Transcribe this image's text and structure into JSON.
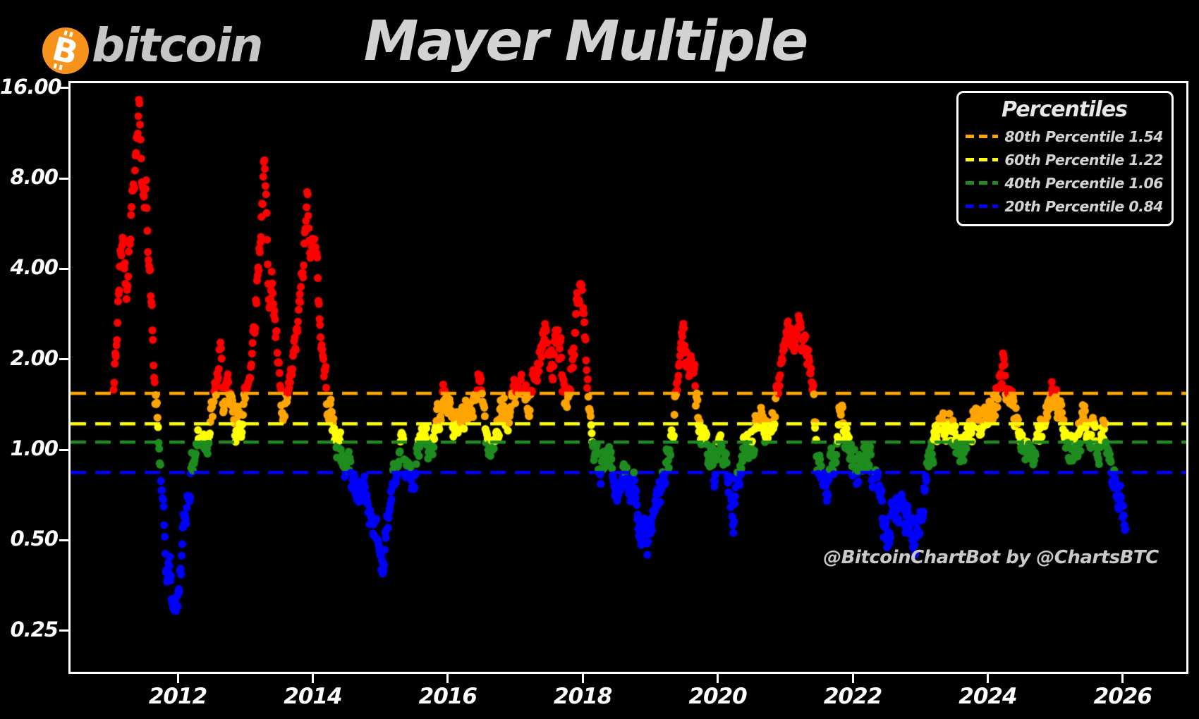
{
  "brand": {
    "wordmark": "bitcoin",
    "coin_color": "#f7931a",
    "symbol": "B"
  },
  "header": {
    "title": "Mayer Multiple"
  },
  "watermark": "@BitcoinChartBot by @ChartsBTC",
  "legend": {
    "title": "Percentiles",
    "items": [
      {
        "label": "80th Percentile 1.54",
        "color": "#ffa500"
      },
      {
        "label": "60th Percentile 1.22",
        "color": "#ffff00"
      },
      {
        "label": "40th Percentile 1.06",
        "color": "#1e8c1e"
      },
      {
        "label": "20th Percentile 0.84",
        "color": "#0000ff"
      }
    ]
  },
  "axes": {
    "y_tick_labels": [
      "16.00",
      "8.00",
      "4.00",
      "2.00",
      "1.00",
      "0.50",
      "0.25"
    ],
    "y_tick_values": [
      16,
      8,
      4,
      2,
      1,
      0.5,
      0.25
    ],
    "x_tick_labels": [
      "2012",
      "2014",
      "2016",
      "2018",
      "2020",
      "2022",
      "2024",
      "2026"
    ],
    "x_tick_values": [
      2012,
      2014,
      2016,
      2018,
      2020,
      2022,
      2024,
      2026
    ]
  },
  "chart_data": {
    "type": "scatter",
    "title": "Mayer Multiple",
    "x_axis": {
      "ticks": [
        2012,
        2014,
        2016,
        2018,
        2020,
        2022,
        2024,
        2026
      ],
      "range": [
        2010.45,
        2026.9
      ]
    },
    "y_axis": {
      "scale": "log2",
      "ticks": [
        16,
        8,
        4,
        2,
        1,
        0.5,
        0.25
      ],
      "range": [
        0.19,
        16.6
      ]
    },
    "grid": false,
    "legend_position": "upper right",
    "thresholds": [
      {
        "name": "80th Percentile",
        "value": 1.54,
        "color": "#ffa500"
      },
      {
        "name": "60th Percentile",
        "value": 1.22,
        "color": "#ffff00"
      },
      {
        "name": "40th Percentile",
        "value": 1.06,
        "color": "#1e8c1e"
      },
      {
        "name": "20th Percentile",
        "value": 0.84,
        "color": "#0000ff"
      }
    ],
    "point_colors": {
      "above_80th": "#ff0000",
      "p60_80": "#ffa500",
      "p40_60": "#ffff00",
      "p20_40": "#1e8c1e",
      "below_20th": "#0000ff"
    },
    "series_keypoints": [
      [
        2011.05,
        1.55
      ],
      [
        2011.09,
        2.2
      ],
      [
        2011.12,
        3.0
      ],
      [
        2011.15,
        4.2
      ],
      [
        2011.18,
        5.1
      ],
      [
        2011.21,
        4.2
      ],
      [
        2011.24,
        3.5
      ],
      [
        2011.27,
        4.6
      ],
      [
        2011.31,
        6.2
      ],
      [
        2011.35,
        8.2
      ],
      [
        2011.39,
        11.0
      ],
      [
        2011.43,
        14.0
      ],
      [
        2011.45,
        11.5
      ],
      [
        2011.47,
        8.5
      ],
      [
        2011.5,
        6.2
      ],
      [
        2011.53,
        7.3
      ],
      [
        2011.56,
        5.2
      ],
      [
        2011.6,
        3.4
      ],
      [
        2011.63,
        2.3
      ],
      [
        2011.66,
        1.55
      ],
      [
        2011.7,
        1.2
      ],
      [
        2011.73,
        0.95
      ],
      [
        2011.76,
        0.74
      ],
      [
        2011.79,
        0.55
      ],
      [
        2011.82,
        0.44
      ],
      [
        2011.85,
        0.36
      ],
      [
        2011.88,
        0.43
      ],
      [
        2011.92,
        0.29
      ],
      [
        2011.96,
        0.33
      ],
      [
        2012.0,
        0.3
      ],
      [
        2012.04,
        0.4
      ],
      [
        2012.08,
        0.52
      ],
      [
        2012.12,
        0.63
      ],
      [
        2012.16,
        0.74
      ],
      [
        2012.2,
        0.85
      ],
      [
        2012.25,
        0.98
      ],
      [
        2012.3,
        1.1
      ],
      [
        2012.34,
        1.05
      ],
      [
        2012.38,
        1.15
      ],
      [
        2012.42,
        1.1
      ],
      [
        2012.46,
        1.18
      ],
      [
        2012.5,
        1.28
      ],
      [
        2012.55,
        1.45
      ],
      [
        2012.6,
        1.8
      ],
      [
        2012.63,
        2.1
      ],
      [
        2012.66,
        1.6
      ],
      [
        2012.7,
        1.38
      ],
      [
        2012.74,
        1.52
      ],
      [
        2012.78,
        1.4
      ],
      [
        2012.82,
        1.3
      ],
      [
        2012.86,
        1.25
      ],
      [
        2012.9,
        1.2
      ],
      [
        2012.95,
        1.32
      ],
      [
        2013.0,
        1.48
      ],
      [
        2013.05,
        1.72
      ],
      [
        2013.1,
        2.2
      ],
      [
        2013.15,
        3.0
      ],
      [
        2013.2,
        4.3
      ],
      [
        2013.24,
        6.0
      ],
      [
        2013.28,
        8.8
      ],
      [
        2013.31,
        6.2
      ],
      [
        2013.34,
        4.2
      ],
      [
        2013.37,
        3.1
      ],
      [
        2013.4,
        3.7
      ],
      [
        2013.44,
        2.7
      ],
      [
        2013.48,
        1.95
      ],
      [
        2013.52,
        1.45
      ],
      [
        2013.56,
        1.18
      ],
      [
        2013.6,
        1.28
      ],
      [
        2013.65,
        1.52
      ],
      [
        2013.7,
        1.85
      ],
      [
        2013.75,
        2.25
      ],
      [
        2013.8,
        2.85
      ],
      [
        2013.85,
        3.7
      ],
      [
        2013.89,
        5.2
      ],
      [
        2013.92,
        7.0
      ],
      [
        2013.95,
        5.8
      ],
      [
        2013.98,
        4.4
      ],
      [
        2014.02,
        5.4
      ],
      [
        2014.05,
        4.3
      ],
      [
        2014.09,
        3.1
      ],
      [
        2014.13,
        2.3
      ],
      [
        2014.17,
        1.85
      ],
      [
        2014.21,
        1.55
      ],
      [
        2014.25,
        1.42
      ],
      [
        2014.29,
        1.25
      ],
      [
        2014.33,
        1.12
      ],
      [
        2014.37,
        1.05
      ],
      [
        2014.41,
        1.0
      ],
      [
        2014.45,
        0.93
      ],
      [
        2014.49,
        0.88
      ],
      [
        2014.53,
        0.92
      ],
      [
        2014.57,
        0.84
      ],
      [
        2014.61,
        0.78
      ],
      [
        2014.65,
        0.72
      ],
      [
        2014.69,
        0.76
      ],
      [
        2014.73,
        0.69
      ],
      [
        2014.77,
        0.73
      ],
      [
        2014.81,
        0.66
      ],
      [
        2014.86,
        0.62
      ],
      [
        2014.91,
        0.58
      ],
      [
        2014.96,
        0.5
      ],
      [
        2015.01,
        0.44
      ],
      [
        2015.05,
        0.43
      ],
      [
        2015.09,
        0.52
      ],
      [
        2015.13,
        0.62
      ],
      [
        2015.17,
        0.73
      ],
      [
        2015.21,
        0.8
      ],
      [
        2015.26,
        0.86
      ],
      [
        2015.31,
        0.92
      ],
      [
        2015.36,
        0.87
      ],
      [
        2015.41,
        0.82
      ],
      [
        2015.46,
        0.78
      ],
      [
        2015.51,
        0.86
      ],
      [
        2015.56,
        0.96
      ],
      [
        2015.61,
        1.06
      ],
      [
        2015.66,
        1.12
      ],
      [
        2015.7,
        1.02
      ],
      [
        2015.75,
        0.96
      ],
      [
        2015.8,
        1.06
      ],
      [
        2015.85,
        1.25
      ],
      [
        2015.9,
        1.48
      ],
      [
        2015.93,
        1.66
      ],
      [
        2015.97,
        1.5
      ],
      [
        2016.01,
        1.4
      ],
      [
        2016.06,
        1.28
      ],
      [
        2016.11,
        1.18
      ],
      [
        2016.16,
        1.12
      ],
      [
        2016.21,
        1.2
      ],
      [
        2016.26,
        1.3
      ],
      [
        2016.31,
        1.24
      ],
      [
        2016.36,
        1.36
      ],
      [
        2016.41,
        1.5
      ],
      [
        2016.45,
        1.68
      ],
      [
        2016.49,
        1.52
      ],
      [
        2016.53,
        1.34
      ],
      [
        2016.57,
        1.2
      ],
      [
        2016.62,
        1.12
      ],
      [
        2016.67,
        1.08
      ],
      [
        2016.72,
        1.16
      ],
      [
        2016.77,
        1.24
      ],
      [
        2016.82,
        1.3
      ],
      [
        2016.87,
        1.27
      ],
      [
        2016.92,
        1.36
      ],
      [
        2016.97,
        1.44
      ],
      [
        2017.02,
        1.55
      ],
      [
        2017.06,
        1.65
      ],
      [
        2017.1,
        1.55
      ],
      [
        2017.15,
        1.45
      ],
      [
        2017.2,
        1.55
      ],
      [
        2017.25,
        1.62
      ],
      [
        2017.3,
        1.78
      ],
      [
        2017.36,
        2.05
      ],
      [
        2017.42,
        2.35
      ],
      [
        2017.47,
        2.5
      ],
      [
        2017.51,
        2.2
      ],
      [
        2017.55,
        1.9
      ],
      [
        2017.6,
        2.1
      ],
      [
        2017.64,
        2.3
      ],
      [
        2017.68,
        2.0
      ],
      [
        2017.72,
        1.6
      ],
      [
        2017.75,
        1.38
      ],
      [
        2017.78,
        1.52
      ],
      [
        2017.82,
        1.8
      ],
      [
        2017.86,
        2.1
      ],
      [
        2017.9,
        2.6
      ],
      [
        2017.94,
        3.3
      ],
      [
        2017.96,
        3.75
      ],
      [
        2017.99,
        3.3
      ],
      [
        2018.02,
        2.6
      ],
      [
        2018.05,
        2.0
      ],
      [
        2018.08,
        1.6
      ],
      [
        2018.11,
        1.32
      ],
      [
        2018.14,
        1.12
      ],
      [
        2018.17,
        0.98
      ],
      [
        2018.21,
        0.9
      ],
      [
        2018.25,
        0.84
      ],
      [
        2018.29,
        0.8
      ],
      [
        2018.33,
        0.88
      ],
      [
        2018.37,
        0.96
      ],
      [
        2018.41,
        0.9
      ],
      [
        2018.46,
        0.85
      ],
      [
        2018.51,
        0.8
      ],
      [
        2018.56,
        0.76
      ],
      [
        2018.61,
        0.8
      ],
      [
        2018.66,
        0.77
      ],
      [
        2018.71,
        0.73
      ],
      [
        2018.76,
        0.7
      ],
      [
        2018.81,
        0.64
      ],
      [
        2018.86,
        0.56
      ],
      [
        2018.91,
        0.52
      ],
      [
        2018.96,
        0.5
      ],
      [
        2019.01,
        0.54
      ],
      [
        2019.06,
        0.58
      ],
      [
        2019.11,
        0.65
      ],
      [
        2019.16,
        0.73
      ],
      [
        2019.21,
        0.83
      ],
      [
        2019.26,
        0.93
      ],
      [
        2019.31,
        1.05
      ],
      [
        2019.36,
        1.3
      ],
      [
        2019.41,
        1.7
      ],
      [
        2019.45,
        2.2
      ],
      [
        2019.48,
        2.55
      ],
      [
        2019.52,
        2.2
      ],
      [
        2019.56,
        1.9
      ],
      [
        2019.6,
        2.1
      ],
      [
        2019.64,
        1.8
      ],
      [
        2019.68,
        1.5
      ],
      [
        2019.72,
        1.3
      ],
      [
        2019.76,
        1.14
      ],
      [
        2019.8,
        1.0
      ],
      [
        2019.83,
        0.95
      ],
      [
        2019.86,
        1.0
      ],
      [
        2019.9,
        0.88
      ],
      [
        2019.95,
        0.8
      ],
      [
        2020.0,
        0.86
      ],
      [
        2020.05,
        0.96
      ],
      [
        2020.1,
        1.0
      ],
      [
        2020.15,
        0.9
      ],
      [
        2020.19,
        0.66
      ],
      [
        2020.23,
        0.57
      ],
      [
        2020.27,
        0.68
      ],
      [
        2020.31,
        0.8
      ],
      [
        2020.36,
        0.9
      ],
      [
        2020.41,
        1.0
      ],
      [
        2020.46,
        1.06
      ],
      [
        2020.51,
        1.1
      ],
      [
        2020.56,
        1.2
      ],
      [
        2020.61,
        1.3
      ],
      [
        2020.66,
        1.24
      ],
      [
        2020.71,
        1.16
      ],
      [
        2020.76,
        1.22
      ],
      [
        2020.81,
        1.32
      ],
      [
        2020.86,
        1.45
      ],
      [
        2020.91,
        1.62
      ],
      [
        2020.95,
        1.9
      ],
      [
        2021.0,
        2.4
      ],
      [
        2021.04,
        2.9
      ],
      [
        2021.08,
        2.6
      ],
      [
        2021.12,
        2.2
      ],
      [
        2021.16,
        2.5
      ],
      [
        2021.2,
        2.7
      ],
      [
        2021.24,
        2.3
      ],
      [
        2021.28,
        2.0
      ],
      [
        2021.32,
        2.2
      ],
      [
        2021.36,
        1.9
      ],
      [
        2021.4,
        1.6
      ],
      [
        2021.44,
        1.2
      ],
      [
        2021.48,
        0.96
      ],
      [
        2021.52,
        0.86
      ],
      [
        2021.56,
        0.78
      ],
      [
        2021.6,
        0.73
      ],
      [
        2021.64,
        0.79
      ],
      [
        2021.68,
        0.9
      ],
      [
        2021.72,
        1.0
      ],
      [
        2021.76,
        1.14
      ],
      [
        2021.8,
        1.28
      ],
      [
        2021.84,
        1.35
      ],
      [
        2021.88,
        1.25
      ],
      [
        2021.92,
        1.14
      ],
      [
        2021.96,
        1.04
      ],
      [
        2022.0,
        0.94
      ],
      [
        2022.04,
        0.86
      ],
      [
        2022.08,
        0.81
      ],
      [
        2022.12,
        0.88
      ],
      [
        2022.16,
        0.95
      ],
      [
        2022.21,
        0.9
      ],
      [
        2022.26,
        0.92
      ],
      [
        2022.31,
        0.85
      ],
      [
        2022.36,
        0.76
      ],
      [
        2022.41,
        0.68
      ],
      [
        2022.46,
        0.55
      ],
      [
        2022.5,
        0.48
      ],
      [
        2022.55,
        0.56
      ],
      [
        2022.6,
        0.63
      ],
      [
        2022.65,
        0.68
      ],
      [
        2022.7,
        0.65
      ],
      [
        2022.75,
        0.62
      ],
      [
        2022.8,
        0.6
      ],
      [
        2022.85,
        0.56
      ],
      [
        2022.9,
        0.48
      ],
      [
        2022.95,
        0.53
      ],
      [
        2023.0,
        0.6
      ],
      [
        2023.05,
        0.72
      ],
      [
        2023.1,
        0.86
      ],
      [
        2023.15,
        0.97
      ],
      [
        2023.2,
        1.08
      ],
      [
        2023.25,
        1.2
      ],
      [
        2023.3,
        1.3
      ],
      [
        2023.35,
        1.22
      ],
      [
        2023.4,
        1.13
      ],
      [
        2023.45,
        1.18
      ],
      [
        2023.5,
        1.1
      ],
      [
        2023.55,
        1.05
      ],
      [
        2023.6,
        1.0
      ],
      [
        2023.65,
        0.95
      ],
      [
        2023.7,
        1.02
      ],
      [
        2023.75,
        1.12
      ],
      [
        2023.8,
        1.25
      ],
      [
        2023.85,
        1.35
      ],
      [
        2023.9,
        1.3
      ],
      [
        2023.95,
        1.4
      ],
      [
        2024.0,
        1.35
      ],
      [
        2024.05,
        1.3
      ],
      [
        2024.1,
        1.42
      ],
      [
        2024.15,
        1.55
      ],
      [
        2024.19,
        1.72
      ],
      [
        2024.23,
        1.85
      ],
      [
        2024.27,
        1.62
      ],
      [
        2024.31,
        1.5
      ],
      [
        2024.36,
        1.4
      ],
      [
        2024.41,
        1.3
      ],
      [
        2024.46,
        1.24
      ],
      [
        2024.51,
        1.15
      ],
      [
        2024.56,
        1.05
      ],
      [
        2024.61,
        0.98
      ],
      [
        2024.66,
        1.03
      ],
      [
        2024.71,
        0.96
      ],
      [
        2024.76,
        1.06
      ],
      [
        2024.81,
        1.16
      ],
      [
        2024.86,
        1.3
      ],
      [
        2024.91,
        1.44
      ],
      [
        2024.96,
        1.52
      ],
      [
        2025.01,
        1.44
      ],
      [
        2025.06,
        1.34
      ],
      [
        2025.11,
        1.24
      ],
      [
        2025.16,
        1.1
      ],
      [
        2025.21,
        1.0
      ],
      [
        2025.26,
        0.96
      ],
      [
        2025.31,
        1.06
      ],
      [
        2025.36,
        1.15
      ],
      [
        2025.41,
        1.2
      ],
      [
        2025.46,
        1.15
      ],
      [
        2025.51,
        1.1
      ],
      [
        2025.56,
        1.18
      ],
      [
        2025.61,
        1.12
      ],
      [
        2025.66,
        1.05
      ],
      [
        2025.71,
        1.1
      ],
      [
        2025.76,
        1.0
      ],
      [
        2025.81,
        0.95
      ],
      [
        2025.86,
        0.88
      ],
      [
        2025.9,
        0.8
      ],
      [
        2025.94,
        0.73
      ],
      [
        2025.98,
        0.66
      ],
      [
        2026.02,
        0.63
      ],
      [
        2026.05,
        0.62
      ]
    ]
  }
}
